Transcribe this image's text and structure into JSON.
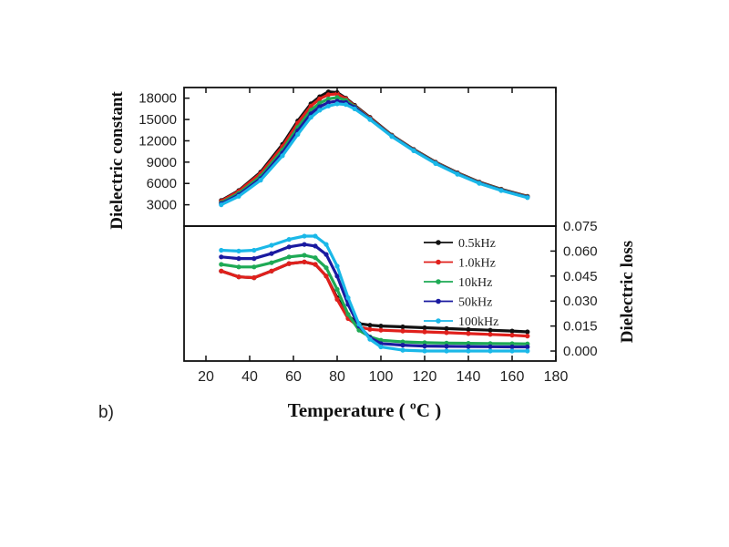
{
  "panel_label": "b)",
  "chart_data": {
    "type": "line",
    "x_axis": {
      "label": "Temperature (  ºC )",
      "range": [
        10,
        180
      ],
      "ticks": [
        20,
        40,
        60,
        80,
        100,
        120,
        140,
        160,
        180
      ],
      "tick_labels": [
        "20",
        "40",
        "60",
        "80",
        "100",
        "120",
        "140",
        "160",
        "180"
      ]
    },
    "legend": {
      "placement": "right, inside lower panel",
      "entries": [
        "0.5kHz",
        "1.0kHz",
        "10kHz",
        "50kHz",
        "100kHz"
      ]
    },
    "colors": {
      "0.5kHz": "#111111",
      "1.0kHz": "#e0201c",
      "10kHz": "#1eaa55",
      "50kHz": "#1a1aa0",
      "100kHz": "#1ab8e8"
    },
    "panels": [
      {
        "name": "Dielectric constant",
        "ylabel": "Dielectric constant",
        "y_side": "left",
        "ylim": [
          0,
          19500
        ],
        "yticks": [
          3000,
          6000,
          9000,
          12000,
          15000,
          18000
        ],
        "ytick_labels": [
          "3000",
          "6000",
          "9000",
          "12000",
          "15000",
          "18000"
        ],
        "x": [
          27,
          35,
          45,
          55,
          62,
          68,
          72,
          76,
          80,
          84,
          88,
          95,
          105,
          115,
          125,
          135,
          145,
          155,
          167
        ],
        "series": [
          {
            "name": "0.5kHz",
            "values": [
              3600,
              5000,
              7600,
              11500,
              14800,
              17200,
              18200,
              18900,
              18800,
              18000,
              17000,
              15300,
              12800,
              10800,
              9000,
              7500,
              6200,
              5200,
              4200
            ]
          },
          {
            "name": "1.0kHz",
            "values": [
              3500,
              4900,
              7400,
              11200,
              14500,
              16900,
              17900,
              18500,
              18600,
              17900,
              16900,
              15200,
              12750,
              10750,
              8950,
              7450,
              6150,
              5150,
              4150
            ]
          },
          {
            "name": "10kHz",
            "values": [
              3300,
              4600,
              7000,
              10700,
              13900,
              16300,
              17300,
              17900,
              18100,
              17700,
              16800,
              15100,
              12700,
              10700,
              8900,
              7400,
              6100,
              5100,
              4100
            ]
          },
          {
            "name": "50kHz",
            "values": [
              3150,
              4400,
              6700,
              10300,
              13400,
              15800,
              16800,
              17400,
              17600,
              17400,
              16700,
              15050,
              12650,
              10650,
              8850,
              7350,
              6050,
              5050,
              4050
            ]
          },
          {
            "name": "100kHz",
            "values": [
              3000,
              4200,
              6450,
              9900,
              12900,
              15300,
              16300,
              16900,
              17200,
              17100,
              16500,
              15000,
              12600,
              10600,
              8800,
              7300,
              6000,
              5000,
              4000
            ]
          }
        ]
      },
      {
        "name": "Dielectric loss",
        "ylabel": "Dielectric loss",
        "y_side": "right",
        "ylim": [
          -0.006,
          0.075
        ],
        "yticks": [
          0.0,
          0.015,
          0.03,
          0.045,
          0.06,
          0.075
        ],
        "ytick_labels": [
          "0.000",
          "0.015",
          "0.030",
          "0.045",
          "0.060",
          "0.075"
        ],
        "x": [
          27,
          35,
          42,
          50,
          58,
          65,
          70,
          75,
          80,
          85,
          90,
          95,
          100,
          110,
          120,
          130,
          140,
          150,
          160,
          167
        ],
        "series": [
          {
            "name": "0.5kHz",
            "values": [
              0.048,
              0.0445,
              0.044,
              0.048,
              0.0525,
              0.0535,
              0.052,
              0.045,
              0.032,
              0.021,
              0.0165,
              0.0155,
              0.015,
              0.0145,
              0.014,
              0.0135,
              0.013,
              0.0125,
              0.012,
              0.0115
            ]
          },
          {
            "name": "1.0kHz",
            "values": [
              0.048,
              0.0445,
              0.044,
              0.048,
              0.0525,
              0.0535,
              0.052,
              0.045,
              0.031,
              0.0195,
              0.0145,
              0.013,
              0.0125,
              0.012,
              0.0115,
              0.011,
              0.0105,
              0.01,
              0.0095,
              0.009
            ]
          },
          {
            "name": "10kHz",
            "values": [
              0.052,
              0.0505,
              0.0505,
              0.053,
              0.0565,
              0.0575,
              0.056,
              0.05,
              0.037,
              0.022,
              0.0125,
              0.0085,
              0.0065,
              0.0055,
              0.005,
              0.0048,
              0.0046,
              0.0045,
              0.0044,
              0.0043
            ]
          },
          {
            "name": "50kHz",
            "values": [
              0.0565,
              0.0555,
              0.0555,
              0.0585,
              0.0625,
              0.064,
              0.063,
              0.058,
              0.045,
              0.028,
              0.015,
              0.008,
              0.0045,
              0.0035,
              0.003,
              0.0028,
              0.0027,
              0.0026,
              0.0025,
              0.0025
            ]
          },
          {
            "name": "100kHz",
            "values": [
              0.0605,
              0.06,
              0.0605,
              0.0635,
              0.067,
              0.069,
              0.069,
              0.064,
              0.051,
              0.032,
              0.016,
              0.007,
              0.0025,
              0.0005,
              0.0,
              0.0,
              0.0,
              0.0,
              0.0,
              0.0
            ]
          }
        ]
      }
    ]
  }
}
